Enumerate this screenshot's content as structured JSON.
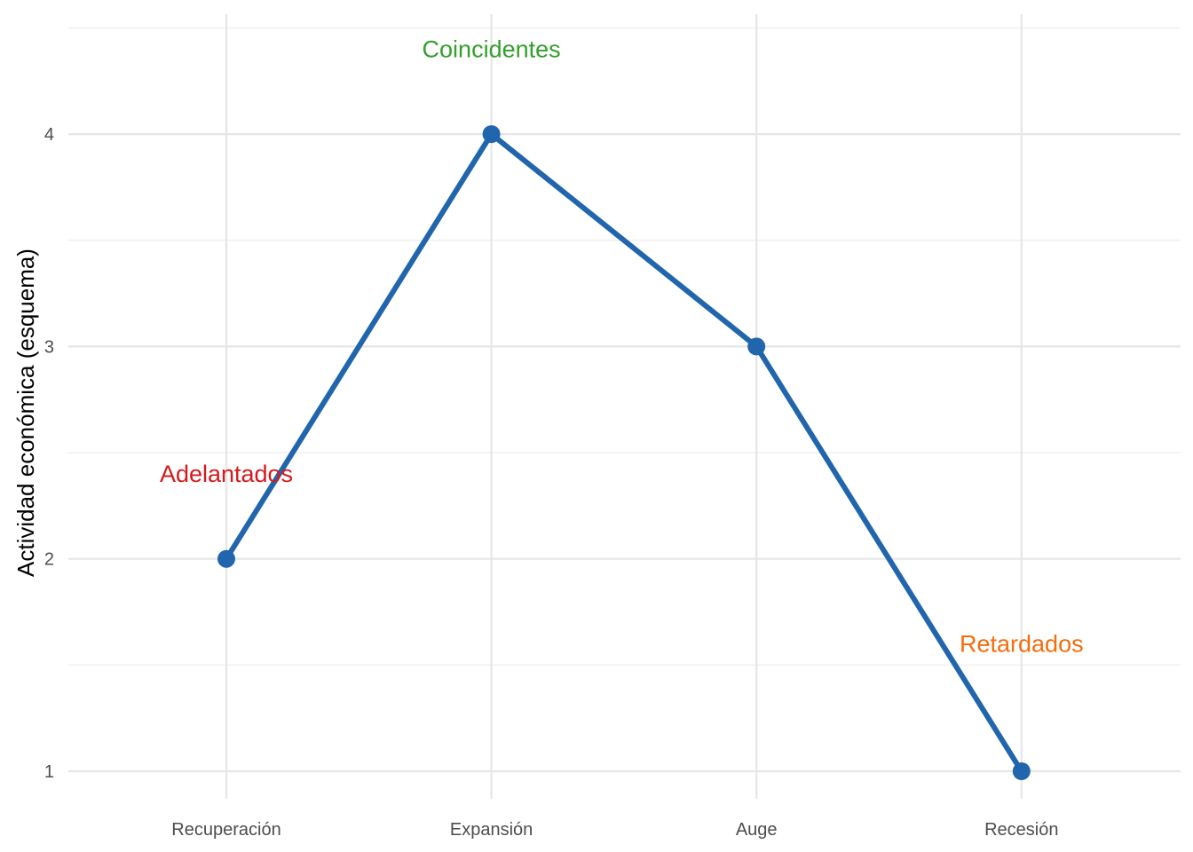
{
  "chart_data": {
    "type": "line",
    "title": "",
    "xlabel": "",
    "ylabel": "Actividad económica (esquema)",
    "categories": [
      "Recuperación",
      "Expansión",
      "Auge",
      "Recesión"
    ],
    "series": [
      {
        "values": [
          2,
          4,
          3,
          1
        ],
        "color": "#2166ac"
      }
    ],
    "ylim": [
      1,
      4.5
    ],
    "yticks": [
      1,
      2,
      3,
      4
    ],
    "grid": true,
    "legend": "none",
    "annotations": [
      {
        "text": "Adelantados",
        "category": "Recuperación",
        "y": 2.4,
        "color": "#d7191c"
      },
      {
        "text": "Coincidentes",
        "category": "Expansión",
        "y": 4.4,
        "color": "#33a02c"
      },
      {
        "text": "Retardados",
        "category": "Recesión",
        "y": 1.6,
        "color": "#f46d0c"
      }
    ]
  }
}
